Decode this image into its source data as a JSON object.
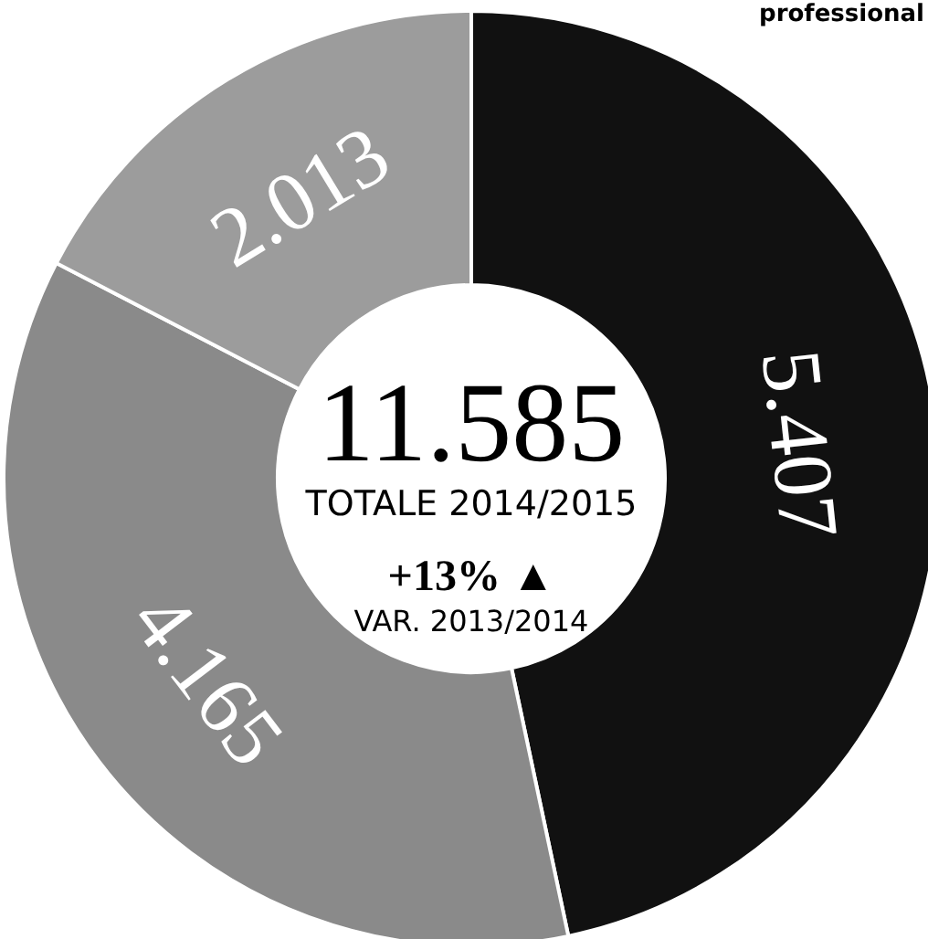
{
  "chart_data": {
    "type": "donut",
    "categories": [
      null,
      null,
      null
    ],
    "values": [
      5407,
      4165,
      2013
    ],
    "colors": [
      "#111111",
      "#8a8a8a",
      "#9c9c9c"
    ],
    "value_labels": [
      "5.407",
      "4.165",
      "2.013"
    ],
    "annotations": [
      "11.585",
      "TOTALE 2014/2015",
      "+13% ▲",
      "VAR. 2013/2014",
      "professional"
    ]
  }
}
